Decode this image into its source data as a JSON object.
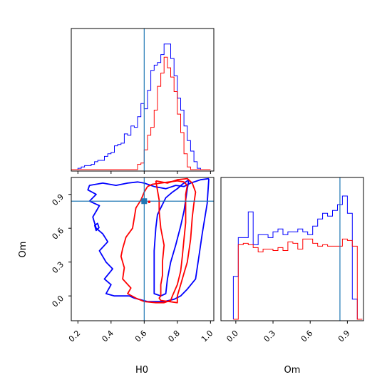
{
  "chart_data": [
    {
      "type": "histogram",
      "panel": "H0 marginal",
      "xlim": [
        0.16,
        1.02
      ],
      "bin_edges": [
        0.16,
        0.18,
        0.2,
        0.22,
        0.24,
        0.26,
        0.28,
        0.3,
        0.32,
        0.34,
        0.36,
        0.38,
        0.4,
        0.42,
        0.44,
        0.46,
        0.48,
        0.5,
        0.52,
        0.54,
        0.56,
        0.58,
        0.6,
        0.62,
        0.64,
        0.66,
        0.68,
        0.7,
        0.72,
        0.74,
        0.76,
        0.78,
        0.8,
        0.82,
        0.84,
        0.86,
        0.88,
        0.9,
        0.92,
        0.94,
        0.96,
        0.98,
        1.0
      ],
      "series": [
        {
          "color": "#0000ff",
          "values": [
            0,
            0,
            0.01,
            0.02,
            0.03,
            0.03,
            0.04,
            0.06,
            0.07,
            0.07,
            0.1,
            0.12,
            0.13,
            0.18,
            0.19,
            0.2,
            0.27,
            0.26,
            0.33,
            0.32,
            0.4,
            0.5,
            0.46,
            0.6,
            0.75,
            0.79,
            0.81,
            0.87,
            0.95,
            0.95,
            0.84,
            0.71,
            0.54,
            0.45,
            0.33,
            0.22,
            0.14,
            0.06,
            0.01,
            0,
            0,
            0
          ]
        },
        {
          "color": "#ff0000",
          "values": [
            0,
            0,
            0,
            0,
            0,
            0,
            0,
            0,
            0,
            0,
            0,
            0,
            0,
            0,
            0,
            0,
            0,
            0,
            0,
            0,
            0.04,
            0.05,
            0.15,
            0.26,
            0.32,
            0.45,
            0.63,
            0.73,
            0.85,
            0.77,
            0.7,
            0.59,
            0.42,
            0.28,
            0.12,
            0.02,
            0,
            0,
            0,
            0,
            0,
            0
          ]
        }
      ],
      "truth_line": 0.6
    },
    {
      "type": "contour",
      "panel": "H0 vs Om",
      "xlabel": "H0",
      "ylabel": "Om",
      "xlim": [
        0.16,
        1.02
      ],
      "ylim": [
        -0.22,
        1.05
      ],
      "x_ticks": [
        "0.2",
        "0.4",
        "0.6",
        "0.8",
        "1.0"
      ],
      "y_ticks": [
        "0.0",
        "0.3",
        "0.6",
        "0.9"
      ],
      "truth_point": [
        0.6,
        0.84
      ],
      "series": [
        {
          "color": "#0000ff",
          "contours": [
            [
              [
                0.99,
                1.04
              ],
              [
                0.94,
                1.03
              ],
              [
                0.88,
                1.0
              ],
              [
                0.84,
                0.97
              ],
              [
                0.79,
                0.98
              ],
              [
                0.73,
                0.95
              ],
              [
                0.66,
                0.97
              ],
              [
                0.6,
                1.0
              ],
              [
                0.56,
                1.01
              ],
              [
                0.5,
                1.0
              ],
              [
                0.43,
                0.98
              ],
              [
                0.35,
                1.0
              ],
              [
                0.27,
                0.98
              ],
              [
                0.26,
                0.94
              ],
              [
                0.31,
                0.9
              ],
              [
                0.27,
                0.84
              ],
              [
                0.33,
                0.8
              ],
              [
                0.31,
                0.75
              ],
              [
                0.29,
                0.7
              ],
              [
                0.31,
                0.6
              ],
              [
                0.35,
                0.55
              ],
              [
                0.38,
                0.48
              ],
              [
                0.33,
                0.4
              ],
              [
                0.37,
                0.3
              ],
              [
                0.41,
                0.24
              ],
              [
                0.36,
                0.15
              ],
              [
                0.4,
                0.1
              ],
              [
                0.37,
                0.02
              ],
              [
                0.42,
                0.0
              ],
              [
                0.51,
                0.0
              ],
              [
                0.54,
                -0.02
              ],
              [
                0.62,
                -0.05
              ],
              [
                0.72,
                -0.05
              ],
              [
                0.78,
                -0.03
              ],
              [
                0.82,
                0.0
              ],
              [
                0.86,
                0.06
              ],
              [
                0.91,
                0.15
              ],
              [
                0.93,
                0.35
              ],
              [
                0.95,
                0.55
              ],
              [
                0.98,
                0.82
              ],
              [
                0.99,
                1.04
              ]
            ],
            [
              [
                0.87,
                1.03
              ],
              [
                0.86,
                0.95
              ],
              [
                0.85,
                0.85
              ],
              [
                0.84,
                0.75
              ],
              [
                0.82,
                0.62
              ],
              [
                0.79,
                0.45
              ],
              [
                0.76,
                0.3
              ],
              [
                0.74,
                0.15
              ],
              [
                0.73,
                0.02
              ],
              [
                0.7,
                0.0
              ],
              [
                0.66,
                0.02
              ],
              [
                0.66,
                0.2
              ],
              [
                0.66,
                0.4
              ],
              [
                0.67,
                0.6
              ],
              [
                0.68,
                0.72
              ],
              [
                0.7,
                0.78
              ],
              [
                0.73,
                0.87
              ],
              [
                0.77,
                0.92
              ],
              [
                0.8,
                0.95
              ],
              [
                0.83,
                0.99
              ],
              [
                0.87,
                1.03
              ]
            ]
          ]
        },
        {
          "color": "#ff0000",
          "contours": [
            [
              [
                0.67,
                1.02
              ],
              [
                0.69,
                0.85
              ],
              [
                0.69,
                0.75
              ],
              [
                0.7,
                0.6
              ],
              [
                0.72,
                0.45
              ],
              [
                0.71,
                0.3
              ],
              [
                0.71,
                0.18
              ],
              [
                0.7,
                0.1
              ],
              [
                0.7,
                0.0
              ],
              [
                0.69,
                -0.02
              ],
              [
                0.7,
                -0.04
              ],
              [
                0.75,
                -0.05
              ],
              [
                0.8,
                -0.06
              ],
              [
                0.8,
                0.0
              ],
              [
                0.82,
                0.1
              ],
              [
                0.84,
                0.2
              ],
              [
                0.86,
                0.3
              ],
              [
                0.88,
                0.5
              ],
              [
                0.89,
                0.7
              ],
              [
                0.9,
                0.82
              ],
              [
                0.91,
                0.92
              ],
              [
                0.89,
                1.0
              ],
              [
                0.86,
                1.04
              ],
              [
                0.8,
                1.03
              ],
              [
                0.74,
                1.0
              ],
              [
                0.67,
                1.02
              ]
            ],
            [
              [
                0.62,
                0.97
              ],
              [
                0.6,
                0.92
              ],
              [
                0.58,
                0.85
              ],
              [
                0.55,
                0.78
              ],
              [
                0.53,
                0.6
              ],
              [
                0.49,
                0.52
              ],
              [
                0.47,
                0.42
              ],
              [
                0.46,
                0.35
              ],
              [
                0.48,
                0.25
              ],
              [
                0.47,
                0.15
              ],
              [
                0.52,
                0.07
              ],
              [
                0.5,
                0.02
              ],
              [
                0.55,
                -0.02
              ],
              [
                0.6,
                -0.05
              ],
              [
                0.67,
                -0.06
              ],
              [
                0.72,
                -0.06
              ],
              [
                0.76,
                -0.04
              ],
              [
                0.77,
                0.0
              ],
              [
                0.8,
                0.1
              ],
              [
                0.82,
                0.22
              ],
              [
                0.83,
                0.35
              ],
              [
                0.84,
                0.5
              ],
              [
                0.85,
                0.65
              ],
              [
                0.85,
                0.75
              ],
              [
                0.85,
                0.9
              ],
              [
                0.86,
                0.98
              ],
              [
                0.84,
                1.01
              ],
              [
                0.8,
                1.02
              ],
              [
                0.75,
                1.01
              ],
              [
                0.7,
                1.0
              ],
              [
                0.65,
                0.99
              ],
              [
                0.62,
                0.97
              ]
            ]
          ]
        }
      ]
    },
    {
      "type": "histogram",
      "panel": "Om marginal",
      "xlabel": "Om",
      "xlim": [
        -0.12,
        1.03
      ],
      "x_ticks": [
        "0.0",
        "0.3",
        "0.6",
        "0.9"
      ],
      "bin_edges": [
        -0.02,
        0.02,
        0.06,
        0.1,
        0.14,
        0.18,
        0.22,
        0.26,
        0.3,
        0.34,
        0.38,
        0.42,
        0.46,
        0.5,
        0.54,
        0.58,
        0.62,
        0.66,
        0.7,
        0.74,
        0.78,
        0.82,
        0.86,
        0.9,
        0.94,
        0.98,
        1.02
      ],
      "series": [
        {
          "color": "#0000ff",
          "values": [
            0.3,
            0.57,
            0.57,
            0.75,
            0.52,
            0.59,
            0.59,
            0.57,
            0.61,
            0.63,
            0.59,
            0.61,
            0.61,
            0.63,
            0.61,
            0.59,
            0.65,
            0.7,
            0.74,
            0.72,
            0.76,
            0.8,
            0.86,
            0.74,
            0.14,
            0
          ],
          "note_first_bin_zero_before": true
        },
        {
          "color": "#ff0000",
          "values": [
            0,
            0.52,
            0.53,
            0.52,
            0.5,
            0.47,
            0.49,
            0.49,
            0.48,
            0.5,
            0.48,
            0.54,
            0.53,
            0.49,
            0.56,
            0.56,
            0.53,
            0.51,
            0.52,
            0.51,
            0.51,
            0.51,
            0.56,
            0.55,
            0.51,
            0
          ]
        }
      ],
      "truth_line": 0.84
    }
  ],
  "colors": {
    "series_blue": "#0000ff",
    "series_red": "#ff0000",
    "truth": "#1f77b4"
  }
}
